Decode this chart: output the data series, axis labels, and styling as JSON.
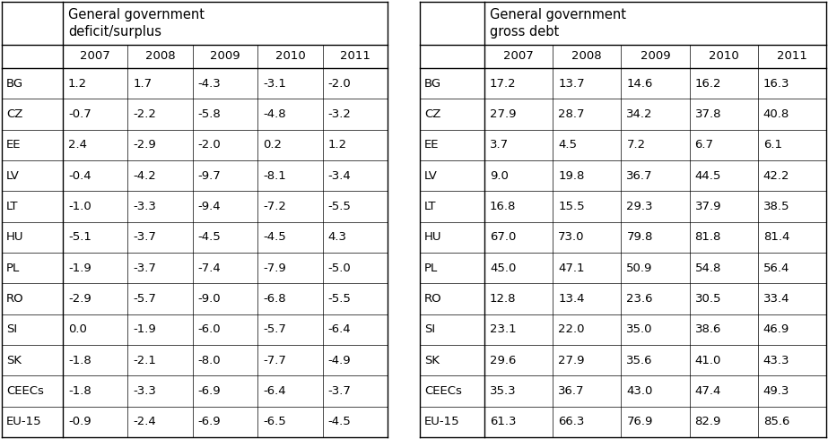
{
  "deficit_header": "General government\ndeficit/surplus",
  "debt_header": "General government\ngross debt",
  "years": [
    "2007",
    "2008",
    "2009",
    "2010",
    "2011"
  ],
  "countries": [
    "BG",
    "CZ",
    "EE",
    "LV",
    "LT",
    "HU",
    "PL",
    "RO",
    "SI",
    "SK",
    "CEECs",
    "EU-15"
  ],
  "deficit_data": [
    [
      "1.2",
      "1.7",
      "-4.3",
      "-3.1",
      "-2.0"
    ],
    [
      "-0.7",
      "-2.2",
      "-5.8",
      "-4.8",
      "-3.2"
    ],
    [
      "2.4",
      "-2.9",
      "-2.0",
      "0.2",
      "1.2"
    ],
    [
      "-0.4",
      "-4.2",
      "-9.7",
      "-8.1",
      "-3.4"
    ],
    [
      "-1.0",
      "-3.3",
      "-9.4",
      "-7.2",
      "-5.5"
    ],
    [
      "-5.1",
      "-3.7",
      "-4.5",
      "-4.5",
      "4.3"
    ],
    [
      "-1.9",
      "-3.7",
      "-7.4",
      "-7.9",
      "-5.0"
    ],
    [
      "-2.9",
      "-5.7",
      "-9.0",
      "-6.8",
      "-5.5"
    ],
    [
      "0.0",
      "-1.9",
      "-6.0",
      "-5.7",
      "-6.4"
    ],
    [
      "-1.8",
      "-2.1",
      "-8.0",
      "-7.7",
      "-4.9"
    ],
    [
      "-1.8",
      "-3.3",
      "-6.9",
      "-6.4",
      "-3.7"
    ],
    [
      "-0.9",
      "-2.4",
      "-6.9",
      "-6.5",
      "-4.5"
    ]
  ],
  "debt_data": [
    [
      "17.2",
      "13.7",
      "14.6",
      "16.2",
      "16.3"
    ],
    [
      "27.9",
      "28.7",
      "34.2",
      "37.8",
      "40.8"
    ],
    [
      "3.7",
      "4.5",
      "7.2",
      "6.7",
      "6.1"
    ],
    [
      "9.0",
      "19.8",
      "36.7",
      "44.5",
      "42.2"
    ],
    [
      "16.8",
      "15.5",
      "29.3",
      "37.9",
      "38.5"
    ],
    [
      "67.0",
      "73.0",
      "79.8",
      "81.8",
      "81.4"
    ],
    [
      "45.0",
      "47.1",
      "50.9",
      "54.8",
      "56.4"
    ],
    [
      "12.8",
      "13.4",
      "23.6",
      "30.5",
      "33.4"
    ],
    [
      "23.1",
      "22.0",
      "35.0",
      "38.6",
      "46.9"
    ],
    [
      "29.6",
      "27.9",
      "35.6",
      "41.0",
      "43.3"
    ],
    [
      "35.3",
      "36.7",
      "43.0",
      "47.4",
      "49.3"
    ],
    [
      "61.3",
      "66.3",
      "76.9",
      "82.9",
      "85.6"
    ]
  ],
  "bg_color": "#ffffff",
  "line_color": "#000000",
  "text_color": "#000000",
  "font_size": 9.5,
  "header_font_size": 10.5
}
